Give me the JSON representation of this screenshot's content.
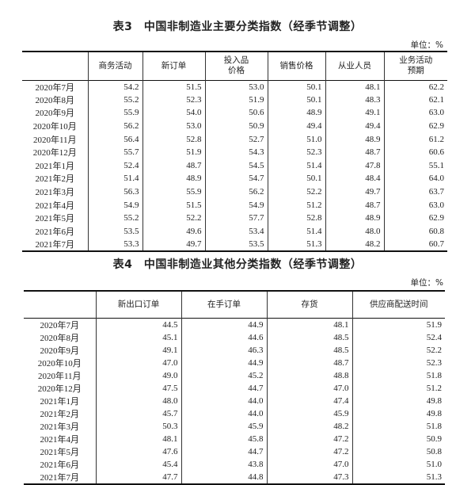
{
  "table3": {
    "title": "表3　中国非制造业主要分类指数（经季节调整）",
    "unit": "单位：%",
    "headers": [
      "",
      "商务活动",
      "新订单",
      "投入品\n价格",
      "销售价格",
      "从业人员",
      "业务活动\n预期"
    ],
    "rows": [
      [
        "2020年7月",
        "54.2",
        "51.5",
        "53.0",
        "50.1",
        "48.1",
        "62.2"
      ],
      [
        "2020年8月",
        "55.2",
        "52.3",
        "51.9",
        "50.1",
        "48.3",
        "62.1"
      ],
      [
        "2020年9月",
        "55.9",
        "54.0",
        "50.6",
        "48.9",
        "49.1",
        "63.0"
      ],
      [
        "2020年10月",
        "56.2",
        "53.0",
        "50.9",
        "49.4",
        "49.4",
        "62.9"
      ],
      [
        "2020年11月",
        "56.4",
        "52.8",
        "52.7",
        "51.0",
        "48.9",
        "61.2"
      ],
      [
        "2020年12月",
        "55.7",
        "51.9",
        "54.3",
        "52.3",
        "48.7",
        "60.6"
      ],
      [
        "2021年1月",
        "52.4",
        "48.7",
        "54.5",
        "51.4",
        "47.8",
        "55.1"
      ],
      [
        "2021年2月",
        "51.4",
        "48.9",
        "54.7",
        "50.1",
        "48.4",
        "64.0"
      ],
      [
        "2021年3月",
        "56.3",
        "55.9",
        "56.2",
        "52.2",
        "49.7",
        "63.7"
      ],
      [
        "2021年4月",
        "54.9",
        "51.5",
        "54.9",
        "51.2",
        "48.7",
        "63.0"
      ],
      [
        "2021年5月",
        "55.2",
        "52.2",
        "57.7",
        "52.8",
        "48.9",
        "62.9"
      ],
      [
        "2021年6月",
        "53.5",
        "49.6",
        "53.4",
        "51.4",
        "48.0",
        "60.8"
      ],
      [
        "2021年7月",
        "53.3",
        "49.7",
        "53.5",
        "51.3",
        "48.2",
        "60.7"
      ]
    ]
  },
  "table4": {
    "title": "表4　中国非制造业其他分类指数（经季节调整）",
    "unit": "单位：%",
    "headers": [
      "",
      "新出口订单",
      "在手订单",
      "存货",
      "供应商配送时间"
    ],
    "rows": [
      [
        "2020年7月",
        "44.5",
        "44.9",
        "48.1",
        "51.9"
      ],
      [
        "2020年8月",
        "45.1",
        "44.6",
        "48.5",
        "52.4"
      ],
      [
        "2020年9月",
        "49.1",
        "46.3",
        "48.5",
        "52.2"
      ],
      [
        "2020年10月",
        "47.0",
        "44.9",
        "48.7",
        "52.3"
      ],
      [
        "2020年11月",
        "49.0",
        "45.2",
        "48.8",
        "51.8"
      ],
      [
        "2020年12月",
        "47.5",
        "44.7",
        "47.0",
        "51.2"
      ],
      [
        "2021年1月",
        "48.0",
        "44.0",
        "47.4",
        "49.8"
      ],
      [
        "2021年2月",
        "45.7",
        "44.0",
        "45.9",
        "49.8"
      ],
      [
        "2021年3月",
        "50.3",
        "45.9",
        "48.2",
        "51.8"
      ],
      [
        "2021年4月",
        "48.1",
        "45.8",
        "47.2",
        "50.9"
      ],
      [
        "2021年5月",
        "47.6",
        "44.7",
        "47.2",
        "50.8"
      ],
      [
        "2021年6月",
        "45.4",
        "43.8",
        "47.0",
        "51.0"
      ],
      [
        "2021年7月",
        "47.7",
        "44.8",
        "47.3",
        "51.3"
      ]
    ]
  }
}
